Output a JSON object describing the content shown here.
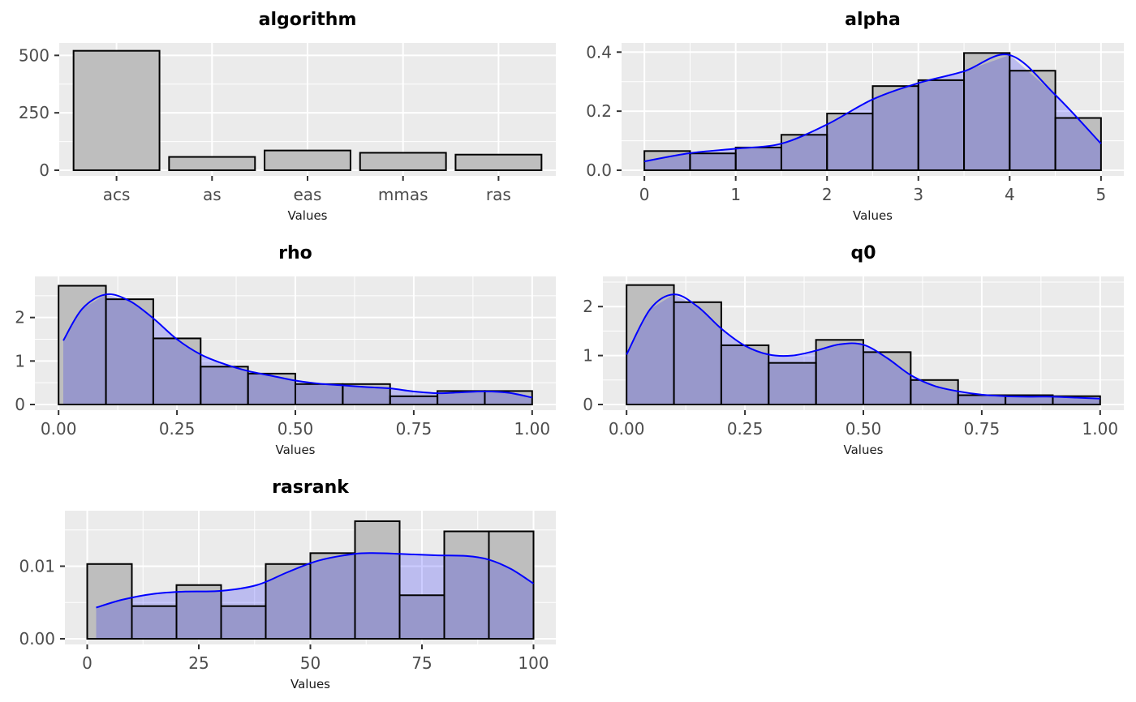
{
  "chart_data": [
    {
      "type": "bar",
      "title": "algorithm",
      "xlabel": "Values",
      "ylabel": "",
      "categories": [
        "acs",
        "as",
        "eas",
        "mmas",
        "ras"
      ],
      "values": [
        520,
        58,
        86,
        76,
        68
      ],
      "ylim": [
        0,
        540
      ],
      "yticks": [
        0,
        250,
        500
      ],
      "ytick_labels": [
        "0",
        "250",
        "500"
      ],
      "grid": true,
      "colors": {
        "fill": "#bebebe",
        "stroke": "#000000",
        "panel": "#ebebeb"
      }
    },
    {
      "type": "histogram",
      "title": "alpha",
      "xlabel": "Values",
      "ylabel": "",
      "bin_edges": [
        0,
        0.5,
        1,
        1.5,
        2,
        2.5,
        3,
        3.5,
        4,
        4.5,
        5
      ],
      "values": [
        0.065,
        0.057,
        0.077,
        0.12,
        0.192,
        0.285,
        0.305,
        0.397,
        0.337,
        0.177
      ],
      "density_x": [
        0,
        0.5,
        1,
        1.5,
        2,
        2.5,
        3,
        3.5,
        4,
        4.5,
        5
      ],
      "density_y": [
        0.03,
        0.058,
        0.073,
        0.09,
        0.155,
        0.24,
        0.295,
        0.335,
        0.39,
        0.255,
        0.09
      ],
      "xlim": [
        -0.25,
        5.25
      ],
      "ylim": [
        0,
        0.42
      ],
      "xticks": [
        0,
        1,
        2,
        3,
        4,
        5
      ],
      "xtick_labels": [
        "0",
        "1",
        "2",
        "3",
        "4",
        "5"
      ],
      "yticks": [
        0,
        0.2,
        0.4
      ],
      "ytick_labels": [
        "0.0",
        "0.2",
        "0.4"
      ],
      "grid": true,
      "colors": {
        "fill": "#bebebe",
        "stroke": "#000000",
        "density_fill": "#0000ff",
        "density_line": "#0000ff",
        "panel": "#ebebeb"
      }
    },
    {
      "type": "histogram",
      "title": "rho",
      "xlabel": "Values",
      "ylabel": "",
      "bin_edges": [
        0,
        0.1,
        0.2,
        0.3,
        0.4,
        0.5,
        0.6,
        0.7,
        0.8,
        0.9,
        1.0
      ],
      "values": [
        2.73,
        2.42,
        1.52,
        0.87,
        0.71,
        0.47,
        0.47,
        0.19,
        0.31,
        0.31
      ],
      "density_x": [
        0.01,
        0.05,
        0.1,
        0.15,
        0.2,
        0.25,
        0.3,
        0.35,
        0.4,
        0.45,
        0.5,
        0.55,
        0.6,
        0.65,
        0.7,
        0.75,
        0.8,
        0.85,
        0.9,
        0.95,
        1.0
      ],
      "density_y": [
        1.47,
        2.2,
        2.53,
        2.38,
        1.98,
        1.5,
        1.15,
        0.93,
        0.77,
        0.66,
        0.55,
        0.48,
        0.44,
        0.4,
        0.37,
        0.3,
        0.26,
        0.28,
        0.3,
        0.27,
        0.16
      ],
      "xlim": [
        -0.05,
        1.05
      ],
      "ylim": [
        0,
        2.87
      ],
      "xticks": [
        0,
        0.25,
        0.5,
        0.75,
        1.0
      ],
      "xtick_labels": [
        "0.00",
        "0.25",
        "0.50",
        "0.75",
        "1.00"
      ],
      "yticks": [
        0,
        1,
        2
      ],
      "ytick_labels": [
        "0",
        "1",
        "2"
      ],
      "grid": true,
      "colors": {
        "fill": "#bebebe",
        "stroke": "#000000",
        "density_fill": "#0000ff",
        "density_line": "#0000ff",
        "panel": "#ebebeb"
      }
    },
    {
      "type": "histogram",
      "title": "q0",
      "xlabel": "Values",
      "ylabel": "",
      "bin_edges": [
        0,
        0.1,
        0.2,
        0.3,
        0.4,
        0.5,
        0.6,
        0.7,
        0.8,
        0.9,
        1.0
      ],
      "values": [
        2.44,
        2.09,
        1.21,
        0.85,
        1.32,
        1.07,
        0.5,
        0.19,
        0.19,
        0.17
      ],
      "density_x": [
        0.0,
        0.05,
        0.1,
        0.15,
        0.2,
        0.25,
        0.3,
        0.35,
        0.4,
        0.45,
        0.5,
        0.55,
        0.6,
        0.65,
        0.7,
        0.75,
        0.8,
        0.85,
        0.9,
        0.95,
        1.0
      ],
      "density_y": [
        1.02,
        1.95,
        2.25,
        2.0,
        1.55,
        1.2,
        1.02,
        1.0,
        1.1,
        1.23,
        1.22,
        0.95,
        0.6,
        0.38,
        0.27,
        0.2,
        0.17,
        0.16,
        0.16,
        0.14,
        0.12
      ],
      "xlim": [
        -0.05,
        1.05
      ],
      "ylim": [
        0,
        2.55
      ],
      "xticks": [
        0,
        0.25,
        0.5,
        0.75,
        1.0
      ],
      "xtick_labels": [
        "0.00",
        "0.25",
        "0.50",
        "0.75",
        "1.00"
      ],
      "yticks": [
        0,
        1,
        2
      ],
      "ytick_labels": [
        "0",
        "1",
        "2"
      ],
      "grid": true,
      "colors": {
        "fill": "#bebebe",
        "stroke": "#000000",
        "density_fill": "#0000ff",
        "density_line": "#0000ff",
        "panel": "#ebebeb"
      }
    },
    {
      "type": "histogram",
      "title": "rasrank",
      "xlabel": "Values",
      "ylabel": "",
      "bin_edges": [
        0,
        10,
        20,
        30,
        40,
        50,
        60,
        70,
        80,
        90,
        100
      ],
      "values": [
        0.0103,
        0.0045,
        0.0074,
        0.0045,
        0.0103,
        0.0118,
        0.0162,
        0.006,
        0.0148,
        0.0148
      ],
      "density_x": [
        2,
        8,
        15,
        22,
        30,
        38,
        45,
        52,
        60,
        65,
        70,
        78,
        85,
        90,
        95,
        100
      ],
      "density_y": [
        0.0043,
        0.0054,
        0.0062,
        0.0065,
        0.0066,
        0.0074,
        0.0092,
        0.0108,
        0.0117,
        0.0118,
        0.0117,
        0.0115,
        0.0114,
        0.0109,
        0.0096,
        0.0076
      ],
      "xlim": [
        -5,
        105
      ],
      "ylim": [
        0,
        0.0172
      ],
      "xticks": [
        0,
        25,
        50,
        75,
        100
      ],
      "xtick_labels": [
        "0",
        "25",
        "50",
        "75",
        "100"
      ],
      "yticks": [
        0,
        0.01
      ],
      "ytick_labels": [
        "0.00",
        "0.01"
      ],
      "grid": true,
      "colors": {
        "fill": "#bebebe",
        "stroke": "#000000",
        "density_fill": "#0000ff",
        "density_line": "#0000ff",
        "panel": "#ebebeb"
      }
    }
  ]
}
